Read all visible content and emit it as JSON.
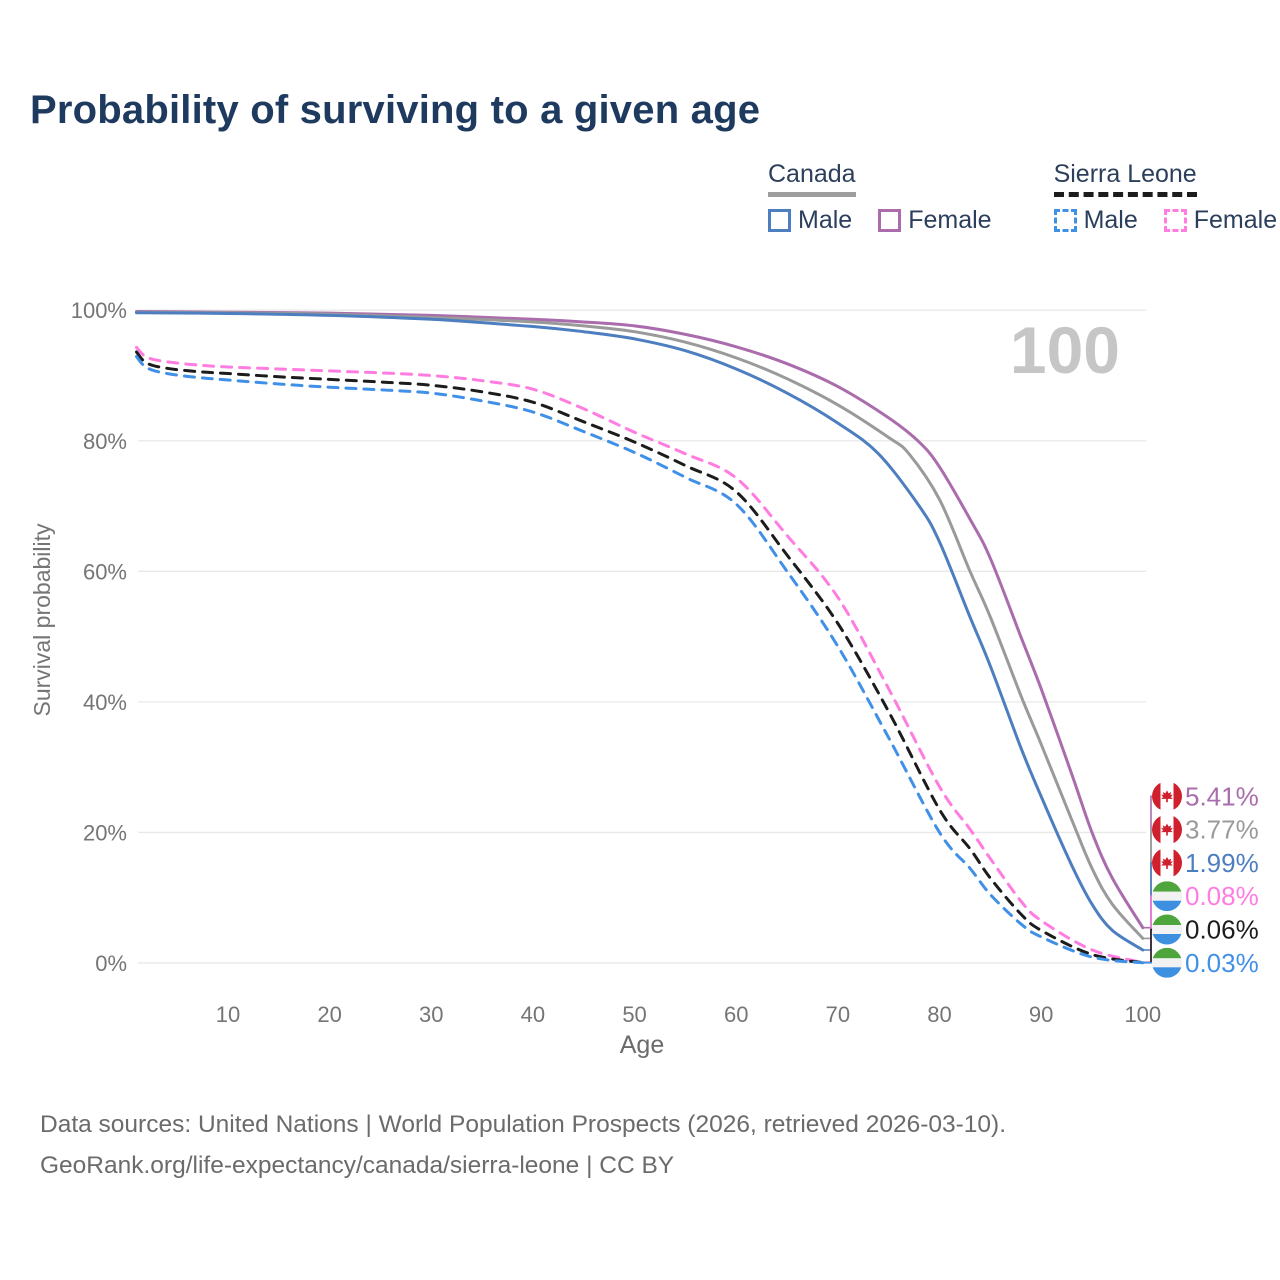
{
  "title": "Probability of surviving to a given age",
  "legend": {
    "canada": {
      "label": "Canada",
      "male": "Male",
      "female": "Female"
    },
    "sierra_leone": {
      "label": "Sierra Leone",
      "male": "Male",
      "female": "Female"
    }
  },
  "footer": {
    "line1": "Data sources: United Nations | World Population Prospects (2026, retrieved 2026-03-10).",
    "line2": "GeoRank.org/life-expectancy/canada/sierra-leone | CC BY"
  },
  "colors": {
    "title_text": "#1e3a5f",
    "legend_text": "#2b3f5c",
    "axis_text": "#757575",
    "footer_text": "#6b6b6b",
    "gridline": "#e8e8e8",
    "big_age_annotation": "#c6c6c6",
    "canada_underline": "#9e9e9e",
    "sierra_leone_underline": "#1c1c1c",
    "canada_male": "#4d7ebf",
    "canada_female": "#aa6cac",
    "canada_combined": "#9a9a9a",
    "sierra_leone_male": "#4190e8",
    "sierra_leone_female": "#ff7ce0",
    "sierra_leone_combined": "#1c1c1c",
    "canada_flag_red": "#d0202e",
    "sierra_leone_flag_green": "#4da53c",
    "sierra_leone_flag_blue": "#3d8fe0"
  },
  "chart_data": {
    "type": "line",
    "title": "Probability of surviving to a given age",
    "xlabel": "Age",
    "ylabel": "Survival probability",
    "xlim": [
      1,
      100
    ],
    "ylim": [
      0,
      100
    ],
    "grid": "horizontal-only",
    "legend_position": "top-right",
    "big_annotation": "100",
    "x_tick_values": [
      10,
      20,
      30,
      40,
      50,
      60,
      70,
      80,
      90,
      100
    ],
    "x_tick_labels": [
      "10",
      "20",
      "30",
      "40",
      "50",
      "60",
      "70",
      "80",
      "90",
      "100"
    ],
    "y_tick_values": [
      0,
      20,
      40,
      60,
      80,
      100
    ],
    "y_tick_labels": [
      "0%",
      "20%",
      "40%",
      "60%",
      "80%",
      "100%"
    ],
    "series": [
      {
        "id": "canada-female",
        "country": "Canada",
        "group": "Female",
        "color": "#aa6cac",
        "dashed": false,
        "flag": "canada",
        "end_label": "5.41%",
        "points": [
          [
            1,
            99.8
          ],
          [
            10,
            99.7
          ],
          [
            20,
            99.55
          ],
          [
            30,
            99.2
          ],
          [
            40,
            98.6
          ],
          [
            45,
            98.2
          ],
          [
            50,
            97.6
          ],
          [
            55,
            96.3
          ],
          [
            60,
            94.4
          ],
          [
            65,
            91.8
          ],
          [
            70,
            88.3
          ],
          [
            75,
            83.5
          ],
          [
            78,
            79.8
          ],
          [
            80,
            76
          ],
          [
            83,
            68
          ],
          [
            85,
            62
          ],
          [
            88,
            50
          ],
          [
            90,
            42
          ],
          [
            93,
            29
          ],
          [
            95,
            20
          ],
          [
            97,
            13
          ],
          [
            100,
            5.41
          ]
        ]
      },
      {
        "id": "canada-combined",
        "country": "Canada",
        "group": "",
        "color": "#9a9a9a",
        "dashed": false,
        "flag": "canada",
        "end_label": "3.77%",
        "points": [
          [
            1,
            99.7
          ],
          [
            10,
            99.6
          ],
          [
            20,
            99.4
          ],
          [
            30,
            98.9
          ],
          [
            40,
            98.2
          ],
          [
            45,
            97.6
          ],
          [
            50,
            96.7
          ],
          [
            55,
            95.1
          ],
          [
            60,
            92.7
          ],
          [
            65,
            89.5
          ],
          [
            70,
            85.5
          ],
          [
            75,
            80.5
          ],
          [
            77,
            78
          ],
          [
            80,
            71
          ],
          [
            83,
            60
          ],
          [
            85,
            53
          ],
          [
            88,
            41
          ],
          [
            90,
            33.5
          ],
          [
            93,
            22
          ],
          [
            95,
            14.5
          ],
          [
            97,
            9
          ],
          [
            100,
            3.77
          ]
        ]
      },
      {
        "id": "canada-male",
        "country": "Canada",
        "group": "Male",
        "color": "#4d7ebf",
        "dashed": false,
        "flag": "canada",
        "end_label": "1.99%",
        "points": [
          [
            1,
            99.6
          ],
          [
            10,
            99.5
          ],
          [
            20,
            99.2
          ],
          [
            30,
            98.6
          ],
          [
            40,
            97.5
          ],
          [
            45,
            96.7
          ],
          [
            50,
            95.6
          ],
          [
            55,
            93.8
          ],
          [
            60,
            91
          ],
          [
            65,
            87.3
          ],
          [
            70,
            82.7
          ],
          [
            74,
            78
          ],
          [
            78,
            70
          ],
          [
            80,
            64.5
          ],
          [
            83,
            53
          ],
          [
            85,
            45.5
          ],
          [
            88,
            33
          ],
          [
            90,
            25.5
          ],
          [
            93,
            15
          ],
          [
            95,
            9
          ],
          [
            97,
            5
          ],
          [
            100,
            1.99
          ]
        ]
      },
      {
        "id": "sierra-leone-female",
        "country": "Sierra Leone",
        "group": "Female",
        "color": "#ff7ce0",
        "dashed": true,
        "flag": "sierra-leone",
        "end_label": "0.08%",
        "points": [
          [
            1,
            94.3
          ],
          [
            2,
            92.8
          ],
          [
            4,
            92.1
          ],
          [
            7,
            91.6
          ],
          [
            10,
            91.3
          ],
          [
            15,
            91
          ],
          [
            20,
            90.7
          ],
          [
            25,
            90.4
          ],
          [
            30,
            90
          ],
          [
            35,
            89.2
          ],
          [
            40,
            87.9
          ],
          [
            45,
            84.9
          ],
          [
            50,
            81.3
          ],
          [
            55,
            78
          ],
          [
            60,
            74.3
          ],
          [
            65,
            65.5
          ],
          [
            70,
            56
          ],
          [
            75,
            42
          ],
          [
            80,
            27
          ],
          [
            83,
            20.5
          ],
          [
            85,
            16
          ],
          [
            88,
            9.5
          ],
          [
            90,
            6.5
          ],
          [
            95,
            2
          ],
          [
            100,
            0.08
          ]
        ]
      },
      {
        "id": "sierra-leone-combined",
        "country": "Sierra Leone",
        "group": "",
        "color": "#1c1c1c",
        "dashed": true,
        "flag": "sierra-leone",
        "end_label": "0.06%",
        "points": [
          [
            1,
            93.6
          ],
          [
            2,
            91.9
          ],
          [
            4,
            91.1
          ],
          [
            7,
            90.6
          ],
          [
            10,
            90.3
          ],
          [
            15,
            89.8
          ],
          [
            20,
            89.4
          ],
          [
            25,
            89
          ],
          [
            30,
            88.5
          ],
          [
            35,
            87.5
          ],
          [
            40,
            85.9
          ],
          [
            45,
            82.9
          ],
          [
            50,
            79.8
          ],
          [
            55,
            76.2
          ],
          [
            60,
            72.2
          ],
          [
            65,
            62.5
          ],
          [
            70,
            52
          ],
          [
            75,
            38.5
          ],
          [
            80,
            23.5
          ],
          [
            83,
            17.5
          ],
          [
            85,
            13
          ],
          [
            88,
            7.5
          ],
          [
            90,
            5
          ],
          [
            95,
            1.3
          ],
          [
            100,
            0.06
          ]
        ]
      },
      {
        "id": "sierra-leone-male",
        "country": "Sierra Leone",
        "group": "Male",
        "color": "#4190e8",
        "dashed": true,
        "flag": "sierra-leone",
        "end_label": "0.03%",
        "points": [
          [
            1,
            92.9
          ],
          [
            2,
            91.2
          ],
          [
            4,
            90.3
          ],
          [
            7,
            89.7
          ],
          [
            10,
            89.3
          ],
          [
            15,
            88.7
          ],
          [
            20,
            88.2
          ],
          [
            25,
            87.8
          ],
          [
            30,
            87.3
          ],
          [
            35,
            86.1
          ],
          [
            40,
            84.4
          ],
          [
            45,
            81.4
          ],
          [
            50,
            78.2
          ],
          [
            55,
            74.4
          ],
          [
            60,
            70.3
          ],
          [
            65,
            60
          ],
          [
            70,
            48.5
          ],
          [
            75,
            34.5
          ],
          [
            80,
            20
          ],
          [
            83,
            14.5
          ],
          [
            85,
            10.5
          ],
          [
            88,
            6
          ],
          [
            90,
            4
          ],
          [
            95,
            0.9
          ],
          [
            100,
            0.03
          ]
        ]
      }
    ]
  }
}
